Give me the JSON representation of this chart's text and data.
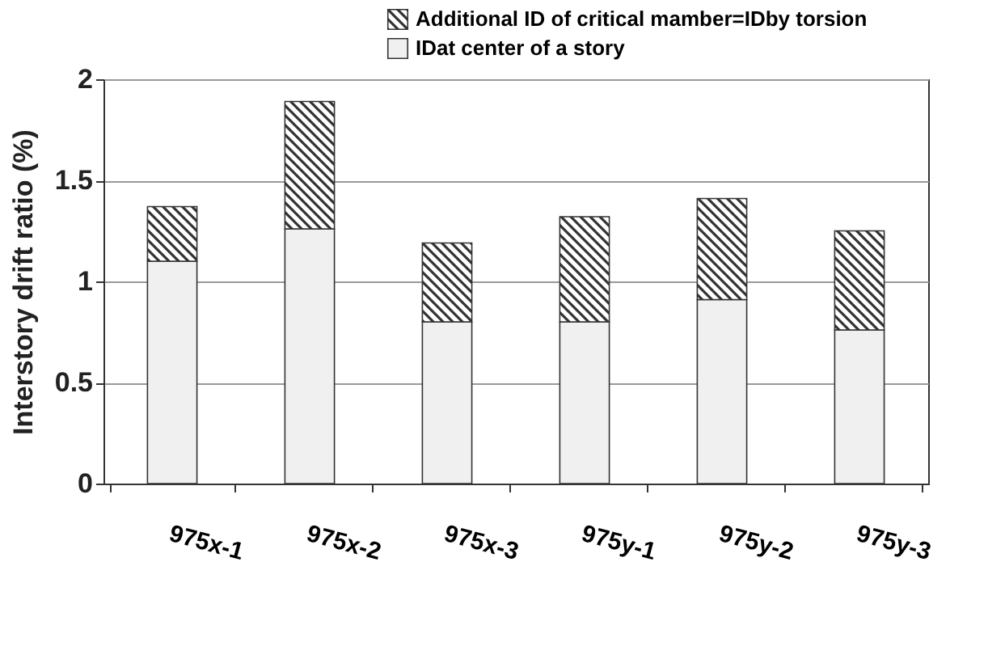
{
  "chart_data": {
    "type": "bar",
    "stacked": true,
    "ylabel": "Interstory drift ratio (%)",
    "categories": [
      "975x-1",
      "975x-2",
      "975x-3",
      "975y-1",
      "975y-2",
      "975y-3"
    ],
    "series": [
      {
        "name": "IDat center of a story",
        "color": "#f0f0f0",
        "values": [
          1.1,
          1.26,
          0.8,
          0.8,
          0.91,
          0.76
        ]
      },
      {
        "name": "Additional ID of critical mamber=IDby torsion",
        "color": "#333333",
        "values": [
          0.27,
          0.63,
          0.39,
          0.52,
          0.5,
          0.49
        ]
      }
    ],
    "ylim": [
      0,
      2
    ],
    "yticks": [
      0,
      0.5,
      1,
      1.5,
      2
    ],
    "grid": "y",
    "legend": "top right"
  }
}
